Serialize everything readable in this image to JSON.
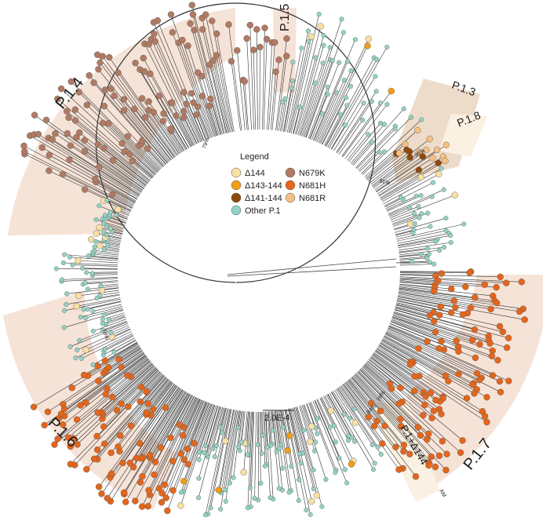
{
  "colors": {
    "background": "#ffffff",
    "branch": "#333333",
    "clade_shade": "#f6e3d8",
    "clade_shade_dark": "#eedccb",
    "clade_shade_light": "#fbf1e2",
    "d144": "#f8dfa4",
    "d143_144": "#f29d14",
    "d141_144": "#8e4a0c",
    "other_p1": "#93d3c4",
    "n679k": "#b07a63",
    "n681h": "#e2661d",
    "n681r": "#f6bf85",
    "stroke": "#555555"
  },
  "legend": {
    "title": "Legend",
    "items": [
      {
        "label": "Δ144",
        "color": "#f8dfa4"
      },
      {
        "label": "Δ143-144",
        "color": "#f29d14"
      },
      {
        "label": "Δ141-144",
        "color": "#8e4a0c"
      },
      {
        "label": "Other P.1",
        "color": "#93d3c4"
      },
      {
        "label": "N679K",
        "color": "#b07a63"
      },
      {
        "label": "N681H",
        "color": "#e2661d"
      },
      {
        "label": "N681R",
        "color": "#f6bf85"
      }
    ]
  },
  "clades": [
    {
      "label": "P.1.4"
    },
    {
      "label": "P.1.5"
    },
    {
      "label": "P.1.3"
    },
    {
      "label": "P.1.8"
    },
    {
      "label": "P.1.6"
    },
    {
      "label": "P.1.7"
    },
    {
      "label": "P.1+Δ144",
      "sub": "AM"
    }
  ],
  "support_labels": [
    "79%",
    "91%",
    "96%",
    "78%",
    "78%",
    "84%"
  ],
  "scale_bar": {
    "label": "2.0E-4"
  }
}
